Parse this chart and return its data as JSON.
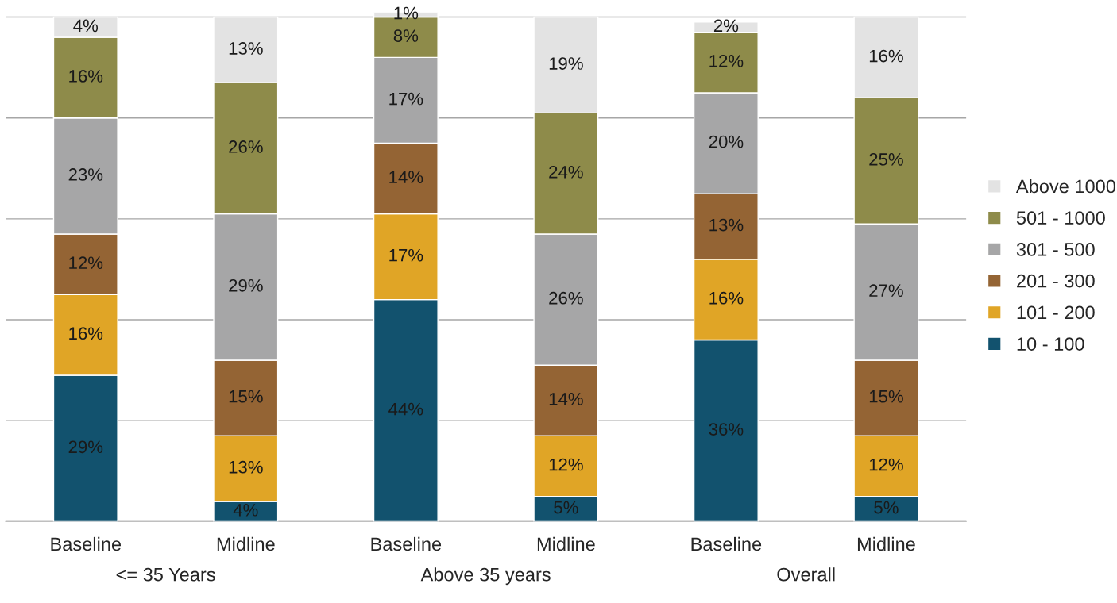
{
  "chart_data": {
    "type": "bar",
    "stacked": true,
    "categories": [
      "Baseline",
      "Midline",
      "Baseline",
      "Midline",
      "Baseline",
      "Midline"
    ],
    "annotations": [
      "<= 35 Years",
      "Above 35 years",
      "Overall"
    ],
    "series": [
      {
        "name": "10 - 100",
        "color": "#12526e",
        "values": [
          29,
          4,
          44,
          5,
          36,
          5
        ],
        "value_labels": [
          "29%",
          "4%",
          "44%",
          "5%",
          "36%",
          "5%"
        ]
      },
      {
        "name": "101 - 200",
        "color": "#e0a526",
        "values": [
          16,
          13,
          17,
          12,
          16,
          12
        ],
        "value_labels": [
          "16%",
          "13%",
          "17%",
          "12%",
          "16%",
          "12%"
        ]
      },
      {
        "name": "201 - 300",
        "color": "#946434",
        "values": [
          12,
          15,
          14,
          14,
          13,
          15
        ],
        "value_labels": [
          "12%",
          "15%",
          "14%",
          "14%",
          "13%",
          "15%"
        ]
      },
      {
        "name": "301 - 500",
        "color": "#a6a6a7",
        "values": [
          23,
          29,
          17,
          26,
          20,
          27
        ],
        "value_labels": [
          "23%",
          "29%",
          "17%",
          "26%",
          "20%",
          "27%"
        ]
      },
      {
        "name": "501 - 1000",
        "color": "#8e8b4a",
        "values": [
          16,
          26,
          8,
          24,
          12,
          25
        ],
        "value_labels": [
          "16%",
          "26%",
          "8%",
          "24%",
          "12%",
          "25%"
        ]
      },
      {
        "name": "Above 1000",
        "color": "#e3e3e3",
        "values": [
          4,
          13,
          1,
          19,
          2,
          16
        ],
        "value_labels": [
          "4%",
          "13%",
          "1%",
          "19%",
          "2%",
          "16%"
        ]
      }
    ],
    "ylim": [
      0,
      101
    ],
    "yticks": [
      {
        "value": 0,
        "label": null
      },
      {
        "value": 20,
        "label": null
      },
      {
        "value": 40,
        "label": null
      },
      {
        "value": 60,
        "label": null
      },
      {
        "value": 80,
        "label": null
      },
      {
        "value": 100,
        "label": null
      }
    ],
    "tick_labels": "x",
    "grid": "y",
    "legend": "right"
  }
}
